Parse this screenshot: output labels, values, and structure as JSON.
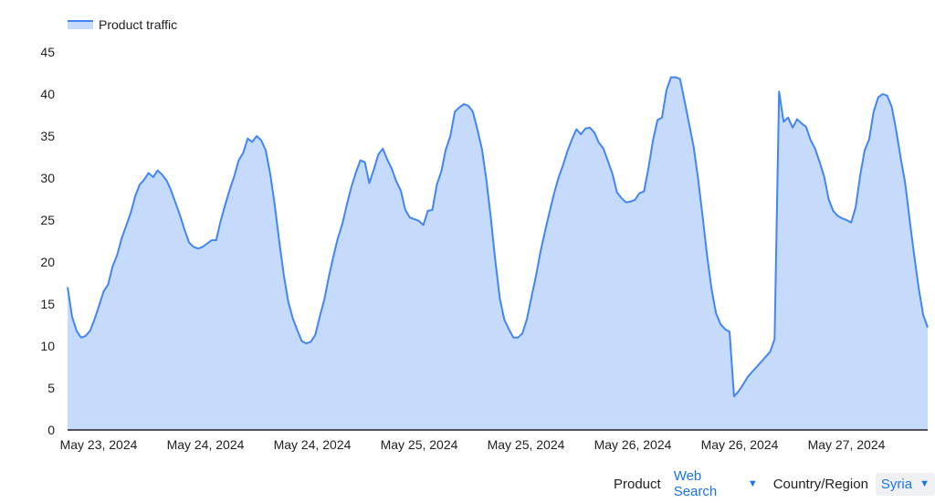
{
  "chart_data": {
    "type": "area",
    "legend": {
      "label": "Product traffic",
      "placement": "top-left"
    },
    "color": "#4285f4",
    "fill_color": "#c6dafc",
    "ylim": [
      0,
      45
    ],
    "yticks": [
      0,
      5,
      10,
      15,
      20,
      25,
      30,
      35,
      40,
      45
    ],
    "grid": false,
    "x_tick_labels": [
      "May 23, 2024",
      "May 24, 2024",
      "May 24, 2024",
      "May 25, 2024",
      "May 25, 2024",
      "May 26, 2024",
      "May 26, 2024",
      "May 27, 2024"
    ],
    "series": [
      {
        "name": "Product traffic",
        "values": [
          17.0,
          13.5,
          11.8,
          11.0,
          11.2,
          11.8,
          13.2,
          14.8,
          16.5,
          17.3,
          19.5,
          20.8,
          22.8,
          24.3,
          25.8,
          27.8,
          29.2,
          29.8,
          30.6,
          30.1,
          30.9,
          30.4,
          29.7,
          28.5,
          27.0,
          25.5,
          23.8,
          22.3,
          21.8,
          21.6,
          21.8,
          22.2,
          22.6,
          22.6,
          24.9,
          26.8,
          28.6,
          30.2,
          32.1,
          33.0,
          34.7,
          34.3,
          35.0,
          34.5,
          33.3,
          30.5,
          26.8,
          22.5,
          18.5,
          15.3,
          13.3,
          11.9,
          10.6,
          10.3,
          10.5,
          11.3,
          13.5,
          15.5,
          18.2,
          20.6,
          22.8,
          24.5,
          26.8,
          28.9,
          30.6,
          32.1,
          31.9,
          29.4,
          31.0,
          32.8,
          33.5,
          32.2,
          31.1,
          29.6,
          28.5,
          26.2,
          25.3,
          25.1,
          24.9,
          24.4,
          26.1,
          26.2,
          29.2,
          30.8,
          33.4,
          35.0,
          37.9,
          38.4,
          38.8,
          38.6,
          37.9,
          35.8,
          33.5,
          29.8,
          25.2,
          20.1,
          15.6,
          13.1,
          12.0,
          11.0,
          11.0,
          11.5,
          13.2,
          15.8,
          18.3,
          21.2,
          23.6,
          25.9,
          28.1,
          30.0,
          31.5,
          33.2,
          34.6,
          35.8,
          35.2,
          35.9,
          36.0,
          35.4,
          34.2,
          33.5,
          32.0,
          30.5,
          28.3,
          27.6,
          27.1,
          27.2,
          27.4,
          28.2,
          28.4,
          31.2,
          34.5,
          36.9,
          37.2,
          40.5,
          42.0,
          42.0,
          41.8,
          39.2,
          36.5,
          33.8,
          30.0,
          25.5,
          20.8,
          16.8,
          13.9,
          12.6,
          12.0,
          11.7,
          4.0,
          4.6,
          5.4,
          6.3,
          6.9,
          7.5,
          8.1,
          8.7,
          9.3,
          10.8,
          40.3,
          36.7,
          37.2,
          36.0,
          37.0,
          36.5,
          36.1,
          34.5,
          33.5,
          31.9,
          30.2,
          27.5,
          26.1,
          25.5,
          25.2,
          25.0,
          24.7,
          26.5,
          30.3,
          33.3,
          34.6,
          37.9,
          39.6,
          40.0,
          39.8,
          38.5,
          35.7,
          32.4,
          29.4,
          25.0,
          20.8,
          16.9,
          13.7,
          12.2
        ]
      }
    ]
  },
  "controls": {
    "product_label": "Product",
    "product_value": "Web Search",
    "region_label": "Country/Region",
    "region_value": "Syria",
    "caret_icon": "triangle-down-icon"
  }
}
